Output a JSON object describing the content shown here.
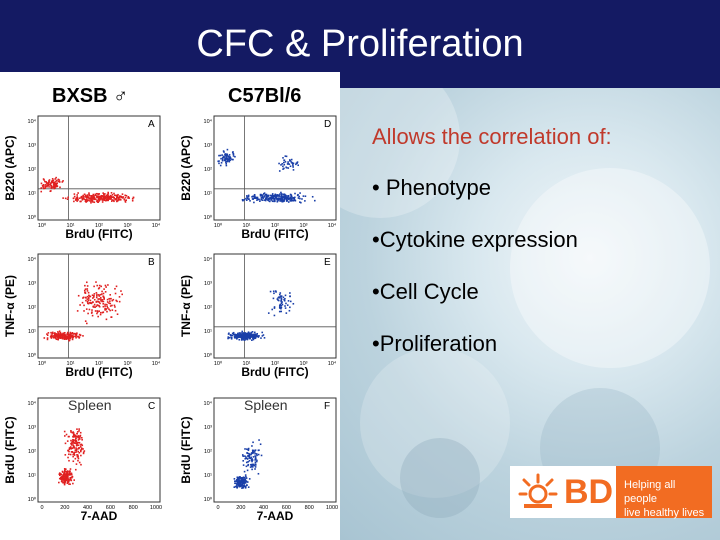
{
  "slide": {
    "title": "CFC & Proliferation",
    "intro": "Allows the correlation of:",
    "bullets": [
      "• Phenotype",
      "•Cytokine expression",
      "•Cell Cycle",
      "•Proliferation"
    ]
  },
  "figure": {
    "strain_left": "BXSB ♂",
    "strain_right": "C57Bl/6",
    "colors": {
      "left": "#e02020",
      "right": "#1a3fa8"
    },
    "panels": [
      {
        "letter": "A",
        "ylabel": "B220 (APC)",
        "xlabel": "BrdU (FITC)",
        "inner": "",
        "yticks": [
          "10⁴",
          "10³",
          "10²",
          "10¹",
          "10⁰"
        ],
        "xticks": [
          "10⁰",
          "10¹",
          "10²",
          "10³",
          "10⁴"
        ]
      },
      {
        "letter": "D",
        "ylabel": "B220 (APC)",
        "xlabel": "BrdU (FITC)",
        "inner": "",
        "yticks": [
          "10⁴",
          "10³",
          "10²",
          "10¹",
          "10⁰"
        ],
        "xticks": [
          "10⁰",
          "10¹",
          "10²",
          "10³",
          "10⁴"
        ]
      },
      {
        "letter": "B",
        "ylabel": "TNF-α (PE)",
        "xlabel": "BrdU (FITC)",
        "inner": "",
        "yticks": [
          "10⁴",
          "10³",
          "10²",
          "10¹",
          "10⁰"
        ],
        "xticks": [
          "10⁰",
          "10¹",
          "10²",
          "10³",
          "10⁴"
        ]
      },
      {
        "letter": "E",
        "ylabel": "TNF-α (PE)",
        "xlabel": "BrdU (FITC)",
        "inner": "",
        "yticks": [
          "10⁴",
          "10³",
          "10²",
          "10¹",
          "10⁰"
        ],
        "xticks": [
          "10⁰",
          "10¹",
          "10²",
          "10³",
          "10⁴"
        ]
      },
      {
        "letter": "C",
        "ylabel": "BrdU (FITC)",
        "xlabel": "7-AAD",
        "inner": "Spleen",
        "yticks": [
          "10⁴",
          "10³",
          "10²",
          "10¹",
          "10⁰"
        ],
        "xticks": [
          "0",
          "200",
          "400",
          "600",
          "800",
          "1000"
        ]
      },
      {
        "letter": "F",
        "ylabel": "BrdU (FITC)",
        "xlabel": "7-AAD",
        "inner": "Spleen",
        "yticks": [
          "10⁴",
          "10³",
          "10²",
          "10¹",
          "10⁰"
        ],
        "xticks": [
          "0",
          "200",
          "400",
          "600",
          "800",
          "1000"
        ]
      }
    ]
  },
  "logo": {
    "brand": "BD",
    "tagline": [
      "Helping all people",
      "live healthy lives"
    ],
    "brand_color": "#f26c22"
  }
}
